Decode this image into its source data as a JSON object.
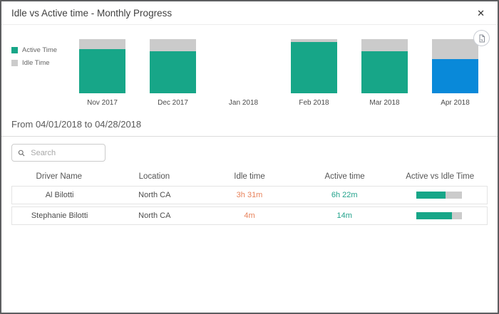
{
  "modal": {
    "title": "Idle vs Active time - Monthly Progress",
    "close_label": "✕"
  },
  "chart_data": {
    "type": "bar",
    "subtype": "100-percent-stacked-column",
    "title": "Idle vs Active time - Monthly Progress",
    "categories": [
      "Nov 2017",
      "Dec 2017",
      "Jan 2018",
      "Feb 2018",
      "Mar 2018",
      "Apr 2018"
    ],
    "series": [
      {
        "name": "Active Time",
        "values_pct": [
          82,
          78,
          0,
          95,
          78,
          63
        ]
      },
      {
        "name": "Idle Time",
        "values_pct": [
          18,
          22,
          0,
          5,
          22,
          37
        ]
      }
    ],
    "selected_category": "Apr 2018",
    "colors": {
      "active": "#17A688",
      "idle": "#CBCBCB",
      "selected_active": "#0989D9"
    },
    "legend_position": "left",
    "grid": false
  },
  "legend": {
    "items": [
      {
        "label": "Active Time",
        "color": "#17A688"
      },
      {
        "label": "Idle Time",
        "color": "#CBCBCB"
      }
    ]
  },
  "period": {
    "label": "From 04/01/2018 to 04/28/2018"
  },
  "search": {
    "placeholder": "Search"
  },
  "table": {
    "headers": [
      "Driver Name",
      "Location",
      "Idle time",
      "Active time",
      "Active vs Idle Time"
    ],
    "rows": [
      {
        "driver": "Al Bilotti",
        "location": "North CA",
        "idle_time": "3h 31m",
        "active_time": "6h 22m",
        "active_pct": 64
      },
      {
        "driver": "Stephanie Bilotti",
        "location": "North CA",
        "idle_time": "4m",
        "active_time": "14m",
        "active_pct": 78
      }
    ]
  }
}
